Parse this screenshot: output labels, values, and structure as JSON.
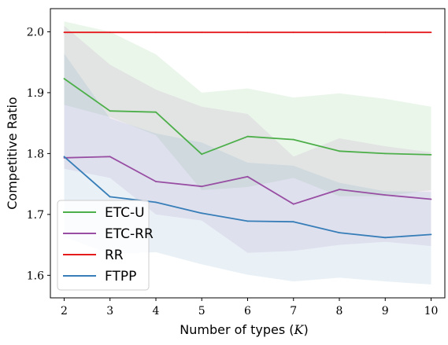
{
  "chart_data": {
    "type": "line",
    "xlabel_text": "Number of types (",
    "xlabel_var": "K",
    "xlabel_close": ")",
    "ylabel": "Competitive Ratio",
    "x": [
      2,
      3,
      4,
      5,
      6,
      7,
      8,
      9,
      10
    ],
    "xlim": [
      1.7,
      10.3
    ],
    "ylim": [
      1.563,
      2.038
    ],
    "xticks": [
      2,
      3,
      4,
      5,
      6,
      7,
      8,
      9,
      10
    ],
    "yticks": [
      1.6,
      1.7,
      1.8,
      1.9,
      2.0
    ],
    "ytick_labels": [
      "1.6",
      "1.7",
      "1.8",
      "1.9",
      "2.0"
    ],
    "grid": false,
    "legend_position": "lower-left",
    "series": [
      {
        "name": "ETC-U",
        "color": "#4daf4a",
        "values": [
          1.923,
          1.87,
          1.868,
          1.799,
          1.828,
          1.823,
          1.804,
          1.8,
          1.798
        ],
        "upper": [
          2.017,
          2.0,
          1.963,
          1.9,
          1.907,
          1.892,
          1.899,
          1.89,
          1.877
        ],
        "lower": [
          1.88,
          1.86,
          1.83,
          1.74,
          1.745,
          1.76,
          1.73,
          1.73,
          1.74
        ]
      },
      {
        "name": "ETC-RR",
        "color": "#984ea3",
        "values": [
          1.793,
          1.795,
          1.754,
          1.746,
          1.762,
          1.717,
          1.741,
          1.732,
          1.725
        ],
        "upper": [
          2.01,
          1.946,
          1.905,
          1.877,
          1.865,
          1.795,
          1.825,
          1.812,
          1.802
        ],
        "lower": [
          1.775,
          1.76,
          1.7,
          1.69,
          1.637,
          1.64,
          1.65,
          1.655,
          1.648
        ]
      },
      {
        "name": "RR",
        "color": "#e41a1c",
        "values": [
          1.999,
          1.999,
          1.999,
          1.999,
          1.999,
          1.999,
          1.999,
          1.999,
          1.999
        ],
        "upper": [
          2.0,
          2.0,
          2.0,
          2.0,
          2.0,
          2.0,
          2.0,
          2.0,
          2.0
        ],
        "lower": [
          1.998,
          1.998,
          1.998,
          1.998,
          1.998,
          1.998,
          1.998,
          1.998,
          1.998
        ]
      },
      {
        "name": "FTPP",
        "color": "#377eb8",
        "values": [
          1.795,
          1.729,
          1.72,
          1.702,
          1.689,
          1.688,
          1.67,
          1.662,
          1.667
        ],
        "upper": [
          1.964,
          1.858,
          1.833,
          1.818,
          1.785,
          1.78,
          1.752,
          1.738,
          1.737
        ],
        "lower": [
          1.663,
          1.635,
          1.638,
          1.618,
          1.601,
          1.59,
          1.596,
          1.59,
          1.585
        ]
      }
    ]
  }
}
